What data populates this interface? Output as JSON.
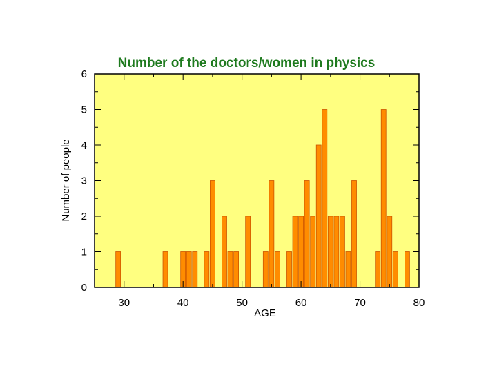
{
  "chart_data": {
    "type": "bar",
    "title": "Number of the doctors/women in physics",
    "xlabel": "AGE",
    "ylabel": "Number of people",
    "xlim": [
      25,
      80
    ],
    "ylim": [
      0,
      6
    ],
    "x_ticks": [
      30,
      40,
      50,
      60,
      70,
      80
    ],
    "y_ticks": [
      0,
      1,
      2,
      3,
      4,
      5,
      6
    ],
    "grid": false,
    "legend": "none",
    "x": [
      29,
      37,
      40,
      41,
      42,
      44,
      45,
      47,
      48,
      49,
      51,
      54,
      55,
      56,
      58,
      59,
      60,
      61,
      62,
      63,
      64,
      65,
      66,
      67,
      68,
      69,
      73,
      74,
      75,
      76,
      78
    ],
    "values": [
      1,
      1,
      1,
      1,
      1,
      1,
      3,
      2,
      1,
      1,
      2,
      1,
      3,
      1,
      1,
      2,
      2,
      3,
      2,
      4,
      5,
      2,
      2,
      2,
      1,
      3,
      1,
      5,
      2,
      1,
      1
    ],
    "colors": {
      "plot_background": "#ffff80",
      "bar_fill": "#ff8c00",
      "bar_edge": "#cc5500",
      "title": "#1e7a1e"
    }
  }
}
